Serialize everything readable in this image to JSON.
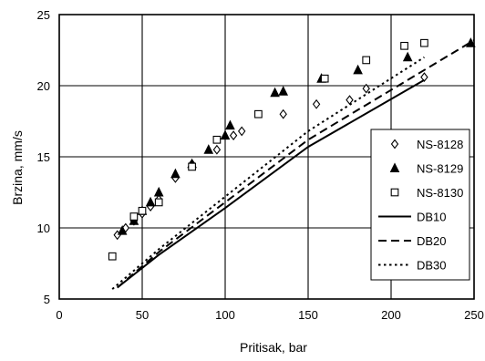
{
  "chart_data": {
    "type": "scatter",
    "xlabel": "Pritisak, bar",
    "ylabel": "Brzina, mm/s",
    "xlim": [
      0,
      250
    ],
    "ylim": [
      5,
      25
    ],
    "xticks": [
      0,
      50,
      100,
      150,
      200,
      250
    ],
    "yticks": [
      5,
      10,
      15,
      20,
      25
    ],
    "x_tick_labels": [
      "0",
      "50",
      "100",
      "150",
      "200",
      "250"
    ],
    "y_tick_labels": [
      "5",
      "10",
      "15",
      "20",
      "25"
    ],
    "grid": true,
    "legend_position": "bottom-right",
    "series": [
      {
        "name": "NS-8128",
        "kind": "scatter",
        "marker": "diamond",
        "x": [
          35,
          40,
          45,
          50,
          55,
          60,
          70,
          80,
          95,
          105,
          110,
          135,
          155,
          175,
          185,
          220
        ],
        "y": [
          9.5,
          10.0,
          10.5,
          11.0,
          11.5,
          12.0,
          13.5,
          14.5,
          15.5,
          16.5,
          16.8,
          18.0,
          18.7,
          19.0,
          19.8,
          20.6
        ]
      },
      {
        "name": "NS-8129",
        "kind": "scatter",
        "marker": "triangle",
        "x": [
          38,
          45,
          50,
          55,
          60,
          70,
          80,
          90,
          100,
          103,
          130,
          135,
          158,
          180,
          210,
          248
        ],
        "y": [
          9.8,
          10.5,
          11.2,
          11.8,
          12.5,
          13.8,
          14.5,
          15.5,
          16.5,
          17.2,
          19.5,
          19.6,
          20.5,
          21.1,
          22.0,
          23.0
        ]
      },
      {
        "name": "NS-8130",
        "kind": "scatter",
        "marker": "square",
        "x": [
          32,
          45,
          50,
          60,
          80,
          95,
          120,
          160,
          185,
          208,
          220
        ],
        "y": [
          8.0,
          10.8,
          11.2,
          11.8,
          14.3,
          16.2,
          18.0,
          20.5,
          21.8,
          22.8,
          23.0
        ]
      },
      {
        "name": "DB10",
        "kind": "line",
        "dash": "solid",
        "x": [
          35,
          60,
          100,
          150,
          220
        ],
        "y": [
          5.8,
          8.1,
          11.4,
          15.7,
          20.4
        ]
      },
      {
        "name": "DB20",
        "kind": "line",
        "dash": "dashed",
        "x": [
          35,
          60,
          100,
          150,
          250
        ],
        "y": [
          5.8,
          8.3,
          11.8,
          16.2,
          23.2
        ]
      },
      {
        "name": "DB30",
        "kind": "line",
        "dash": "dotted",
        "x": [
          32,
          60,
          100,
          150,
          220
        ],
        "y": [
          5.7,
          8.5,
          12.2,
          16.8,
          22.0
        ]
      }
    ]
  }
}
